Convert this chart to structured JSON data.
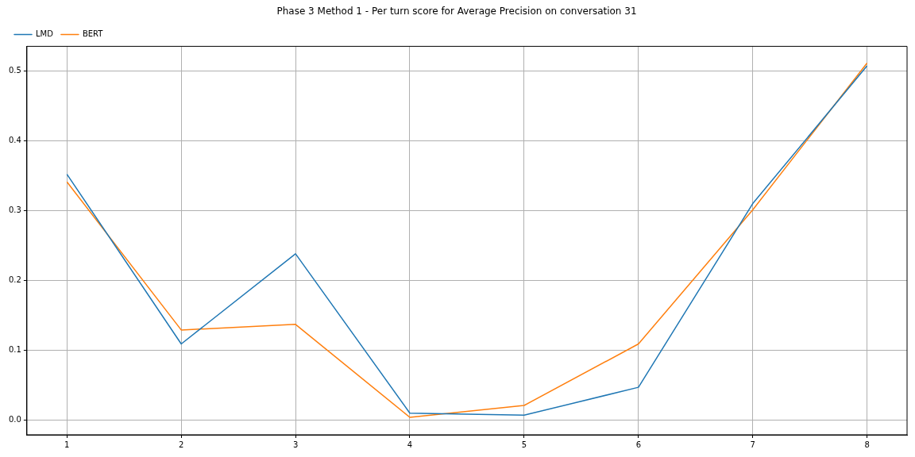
{
  "chart_data": {
    "type": "line",
    "title": "Phase 3 Method 1 - Per turn score for Average Precision on conversation 31",
    "x": [
      1,
      2,
      3,
      4,
      5,
      6,
      7,
      8
    ],
    "series": [
      {
        "name": "LMD",
        "color": "#1f77b4",
        "values": [
          0.352,
          0.109,
          0.238,
          0.01,
          0.007,
          0.047,
          0.31,
          0.507
        ]
      },
      {
        "name": "BERT",
        "color": "#ff7f0e",
        "values": [
          0.341,
          0.129,
          0.137,
          0.004,
          0.021,
          0.109,
          0.301,
          0.511
        ]
      }
    ],
    "xlim": [
      0.65,
      8.35
    ],
    "xticks": [
      1,
      2,
      3,
      4,
      5,
      6,
      7,
      8
    ],
    "ylim": [
      -0.021,
      0.535
    ],
    "yticks": [
      {
        "value": 0,
        "label": "0.0"
      },
      {
        "value": 0.1,
        "label": "0.1"
      },
      {
        "value": 0.2,
        "label": "0.2"
      },
      {
        "value": 0.3,
        "label": "0.3"
      },
      {
        "value": 0.4,
        "label": "0.4"
      },
      {
        "value": 0.5,
        "label": "0.5"
      }
    ],
    "grid": true,
    "legend": "top left",
    "marker": "none",
    "line_style": "solid"
  }
}
